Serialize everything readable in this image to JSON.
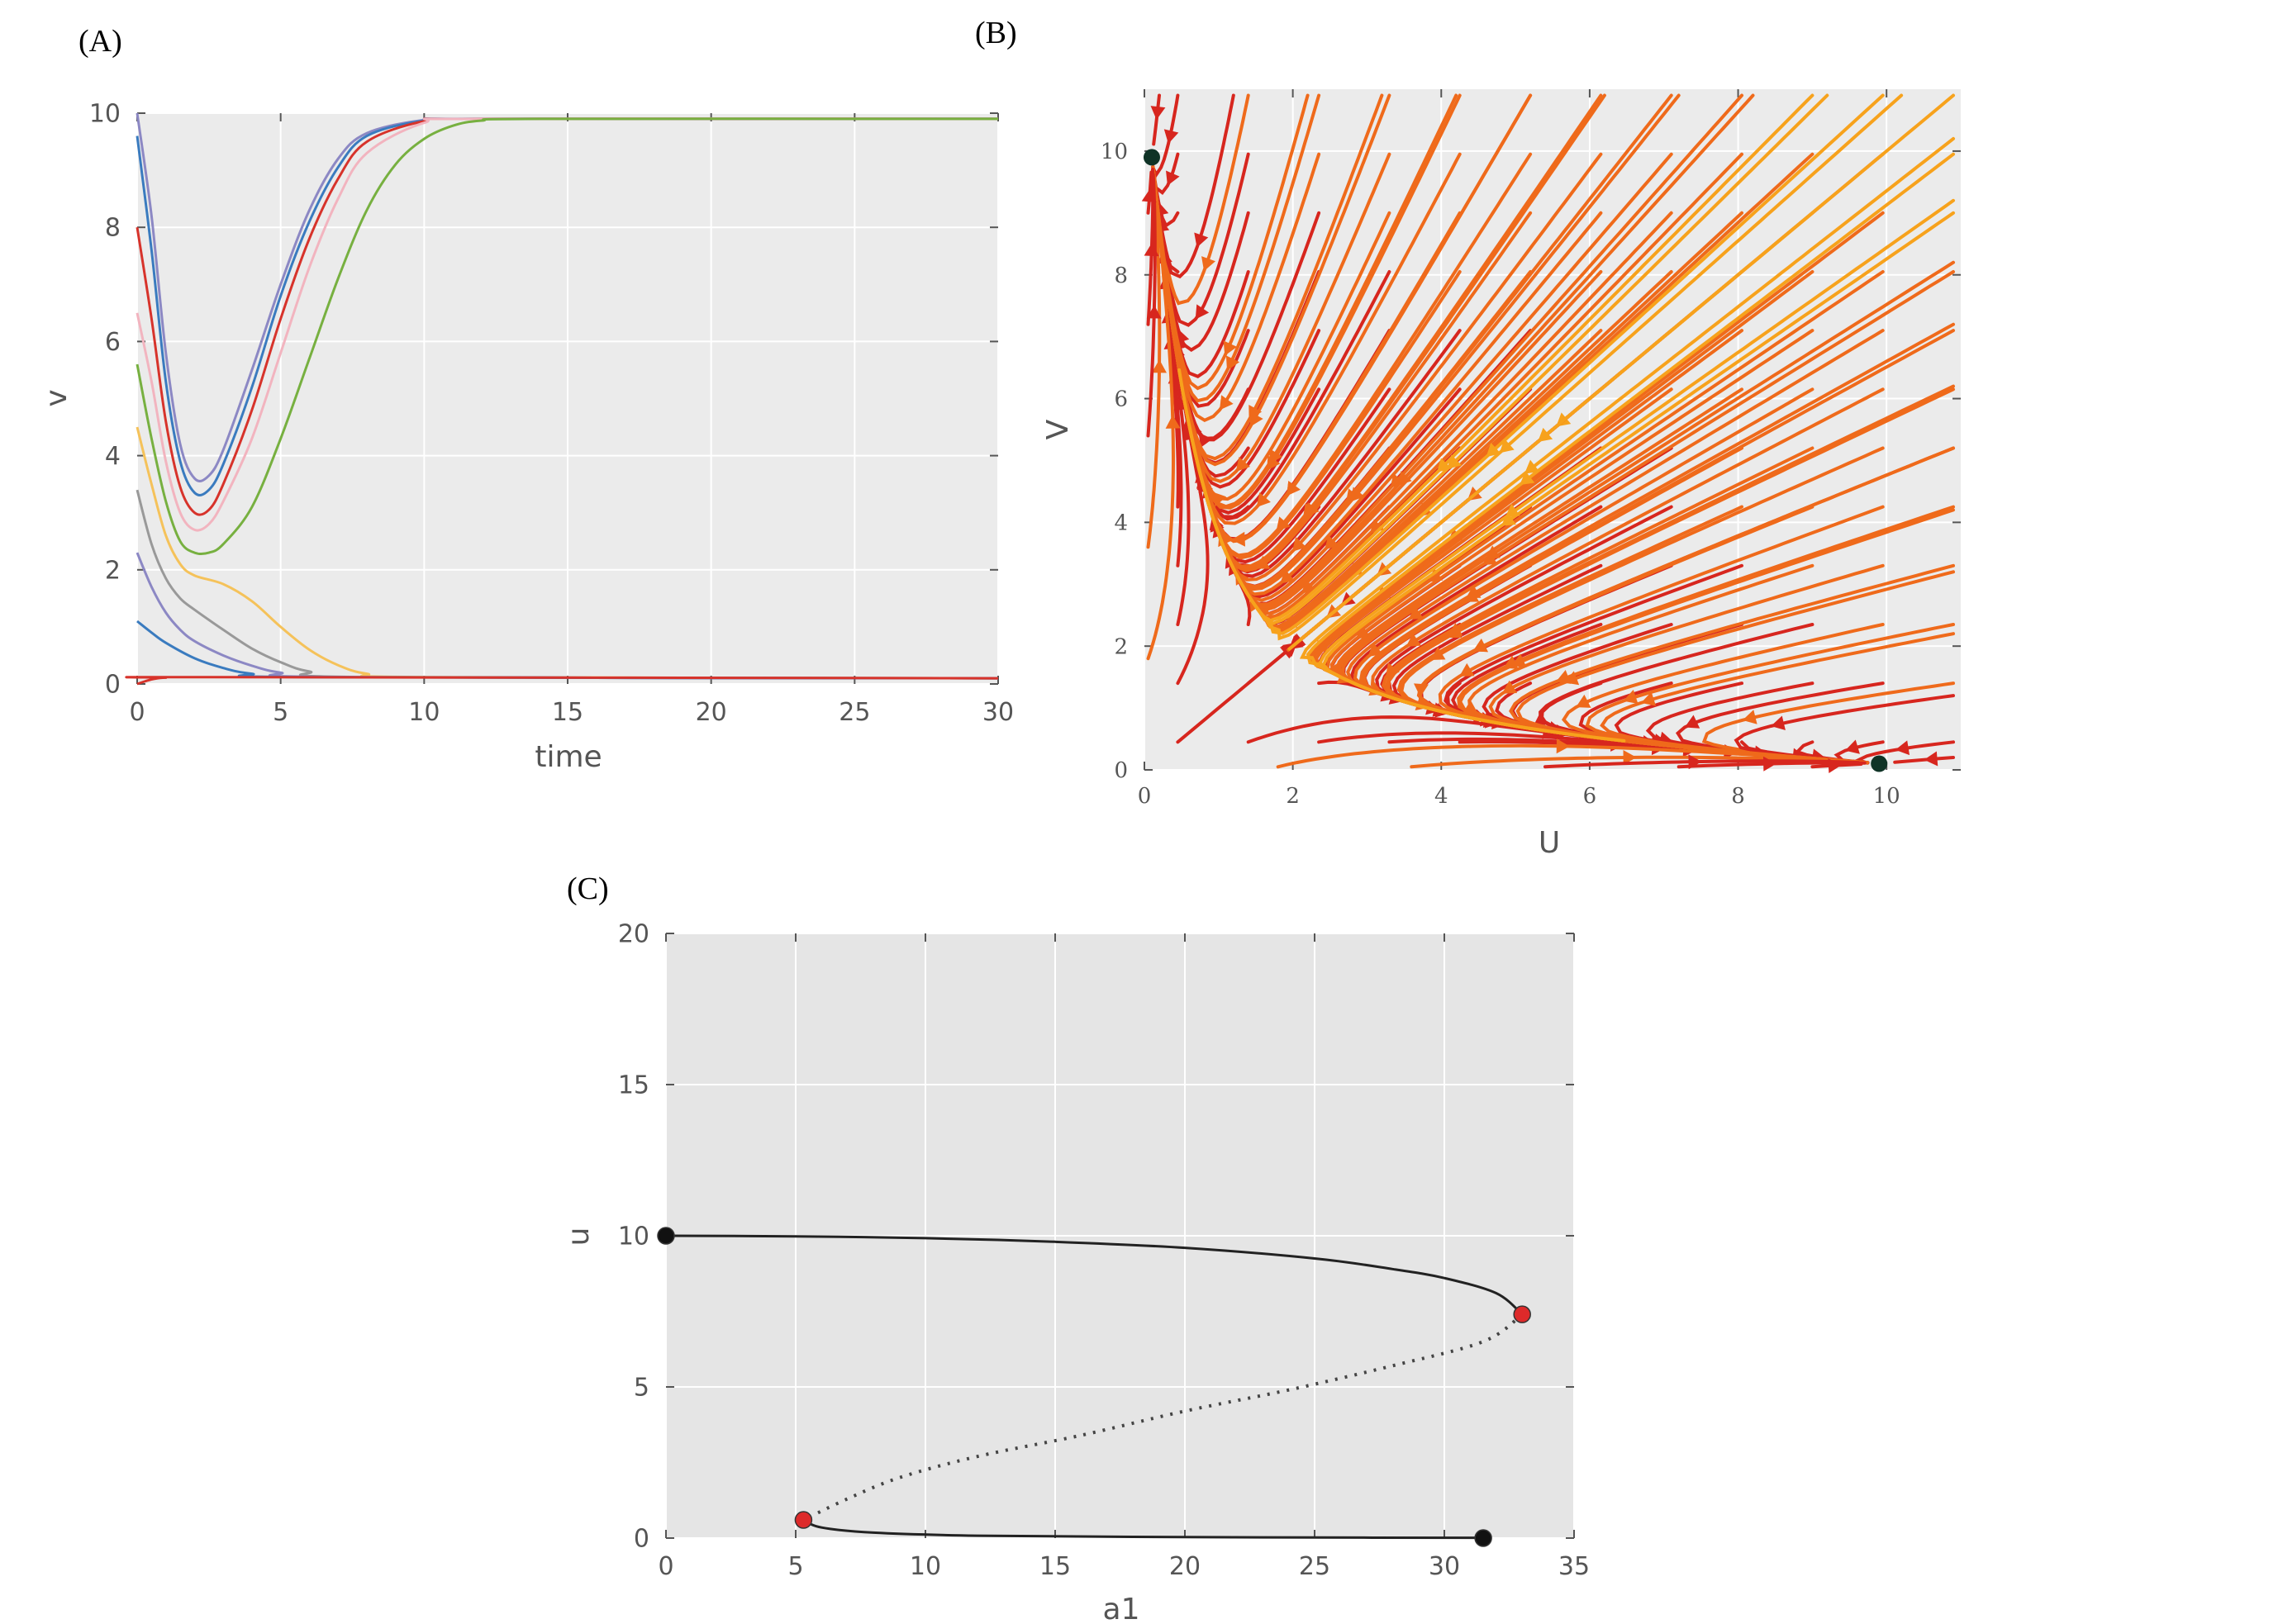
{
  "chart_data": [
    {
      "panel_label": "(A)",
      "type": "line",
      "title": "",
      "xlabel": "time",
      "ylabel": "v",
      "xlim": [
        0,
        30
      ],
      "ylim": [
        0,
        10
      ],
      "xticks": [
        0,
        5,
        10,
        15,
        20,
        25,
        30
      ],
      "yticks": [
        0,
        2,
        4,
        6,
        8,
        10
      ],
      "grid": true,
      "legend": "none",
      "series": [
        {
          "color": "#8c88c4",
          "values": [
            [
              0,
              10.0
            ],
            [
              0.5,
              8.2
            ],
            [
              1,
              5.8
            ],
            [
              1.5,
              4.2
            ],
            [
              2,
              3.6
            ],
            [
              2.5,
              3.65
            ],
            [
              3,
              4.1
            ],
            [
              4,
              5.5
            ],
            [
              5,
              7.0
            ],
            [
              6,
              8.3
            ],
            [
              7,
              9.2
            ],
            [
              8,
              9.65
            ],
            [
              10,
              9.88
            ],
            [
              12,
              9.9
            ],
            [
              30,
              9.9
            ]
          ]
        },
        {
          "color": "#3a7bbf",
          "values": [
            [
              0,
              9.6
            ],
            [
              0.5,
              7.6
            ],
            [
              1,
              5.3
            ],
            [
              1.5,
              3.9
            ],
            [
              2,
              3.35
            ],
            [
              2.5,
              3.4
            ],
            [
              3,
              3.85
            ],
            [
              4,
              5.2
            ],
            [
              5,
              6.8
            ],
            [
              6,
              8.1
            ],
            [
              7,
              9.05
            ],
            [
              8,
              9.6
            ],
            [
              10,
              9.87
            ],
            [
              12,
              9.9
            ],
            [
              30,
              9.9
            ]
          ]
        },
        {
          "color": "#d7332b",
          "values": [
            [
              0,
              8.0
            ],
            [
              0.5,
              6.4
            ],
            [
              1,
              4.6
            ],
            [
              1.5,
              3.45
            ],
            [
              2,
              3.0
            ],
            [
              2.5,
              3.05
            ],
            [
              3,
              3.5
            ],
            [
              4,
              4.8
            ],
            [
              5,
              6.4
            ],
            [
              6,
              7.8
            ],
            [
              7,
              8.85
            ],
            [
              8,
              9.5
            ],
            [
              10,
              9.86
            ],
            [
              12,
              9.9
            ],
            [
              30,
              9.9
            ]
          ]
        },
        {
          "color": "#f2b4bf",
          "values": [
            [
              0,
              6.5
            ],
            [
              0.5,
              5.3
            ],
            [
              1,
              3.9
            ],
            [
              1.5,
              3.0
            ],
            [
              2,
              2.7
            ],
            [
              2.5,
              2.8
            ],
            [
              3,
              3.2
            ],
            [
              4,
              4.3
            ],
            [
              5,
              5.8
            ],
            [
              6,
              7.3
            ],
            [
              7,
              8.5
            ],
            [
              8,
              9.3
            ],
            [
              10,
              9.83
            ],
            [
              12,
              9.9
            ],
            [
              30,
              9.9
            ]
          ]
        },
        {
          "color": "#77b040",
          "values": [
            [
              0,
              5.6
            ],
            [
              0.5,
              4.3
            ],
            [
              1,
              3.2
            ],
            [
              1.5,
              2.5
            ],
            [
              2,
              2.3
            ],
            [
              2.5,
              2.3
            ],
            [
              3,
              2.45
            ],
            [
              4,
              3.1
            ],
            [
              5,
              4.3
            ],
            [
              6,
              5.7
            ],
            [
              7,
              7.1
            ],
            [
              8,
              8.3
            ],
            [
              9,
              9.1
            ],
            [
              10,
              9.55
            ],
            [
              11,
              9.78
            ],
            [
              12,
              9.87
            ],
            [
              14,
              9.9
            ],
            [
              30,
              9.9
            ]
          ]
        },
        {
          "color": "#f5c25a",
          "values": [
            [
              0,
              4.5
            ],
            [
              0.5,
              3.5
            ],
            [
              1,
              2.6
            ],
            [
              1.5,
              2.1
            ],
            [
              2,
              1.9
            ],
            [
              3,
              1.75
            ],
            [
              4,
              1.45
            ],
            [
              5,
              1.0
            ],
            [
              6,
              0.6
            ],
            [
              7,
              0.33
            ],
            [
              8,
              0.18
            ],
            [
              10,
              0.12
            ],
            [
              30,
              0.1
            ]
          ]
        },
        {
          "color": "#999999",
          "values": [
            [
              0,
              3.4
            ],
            [
              0.5,
              2.45
            ],
            [
              1,
              1.85
            ],
            [
              1.5,
              1.5
            ],
            [
              2,
              1.3
            ],
            [
              3,
              0.95
            ],
            [
              4,
              0.62
            ],
            [
              5,
              0.38
            ],
            [
              6,
              0.22
            ],
            [
              8,
              0.12
            ],
            [
              30,
              0.1
            ]
          ]
        },
        {
          "color": "#8c88c4",
          "values": [
            [
              0,
              2.3
            ],
            [
              0.5,
              1.7
            ],
            [
              1,
              1.25
            ],
            [
              1.5,
              0.95
            ],
            [
              2,
              0.75
            ],
            [
              3,
              0.5
            ],
            [
              4,
              0.32
            ],
            [
              5,
              0.2
            ],
            [
              7,
              0.12
            ],
            [
              30,
              0.1
            ]
          ]
        },
        {
          "color": "#3a7bbf",
          "values": [
            [
              0,
              1.1
            ],
            [
              0.5,
              0.9
            ],
            [
              1,
              0.72
            ],
            [
              2,
              0.45
            ],
            [
              3,
              0.28
            ],
            [
              4,
              0.18
            ],
            [
              6,
              0.12
            ],
            [
              30,
              0.1
            ]
          ]
        },
        {
          "color": "#d7332b",
          "values": [
            [
              0,
              0.0
            ],
            [
              0.3,
              0.05
            ],
            [
              0.6,
              0.09
            ],
            [
              1,
              0.11
            ],
            [
              2,
              0.12
            ],
            [
              30,
              0.1
            ]
          ]
        }
      ]
    },
    {
      "panel_label": "(B)",
      "type": "streamplot",
      "title": "",
      "xlabel": "U",
      "ylabel": "V",
      "xlim": [
        0,
        11
      ],
      "ylim": [
        0,
        11
      ],
      "xticks": [
        0,
        2,
        4,
        6,
        8,
        10
      ],
      "yticks": [
        0,
        2,
        4,
        6,
        8,
        10
      ],
      "grid": true,
      "legend": "none",
      "equilibria": [
        [
          0.1,
          9.9
        ],
        [
          9.9,
          0.1
        ]
      ],
      "color_scale": [
        "#d7261e",
        "#ef6a1b",
        "#f7a21c",
        "#f9e028"
      ]
    },
    {
      "panel_label": "(C)",
      "type": "line",
      "title": "",
      "xlabel": "a1",
      "ylabel": "u",
      "xlim": [
        0,
        35
      ],
      "ylim": [
        0,
        20
      ],
      "xticks": [
        0,
        5,
        10,
        15,
        20,
        25,
        30,
        35
      ],
      "yticks": [
        0,
        5,
        10,
        15,
        20
      ],
      "grid": true,
      "legend": "none",
      "series": [
        {
          "style": "solid",
          "color": "#222222",
          "values": [
            [
              0,
              10.0
            ],
            [
              5,
              9.98
            ],
            [
              10,
              9.92
            ],
            [
              15,
              9.8
            ],
            [
              20,
              9.6
            ],
            [
              25,
              9.25
            ],
            [
              28,
              8.9
            ],
            [
              30,
              8.6
            ],
            [
              32,
              8.1
            ],
            [
              33,
              7.4
            ]
          ]
        },
        {
          "style": "dotted",
          "color": "#444444",
          "values": [
            [
              33,
              7.4
            ],
            [
              31.5,
              6.5
            ],
            [
              28,
              5.7
            ],
            [
              24,
              4.9
            ],
            [
              20,
              4.2
            ],
            [
              16,
              3.4
            ],
            [
              12,
              2.7
            ],
            [
              9,
              2.0
            ],
            [
              7,
              1.3
            ],
            [
              5.3,
              0.6
            ]
          ]
        },
        {
          "style": "solid",
          "color": "#222222",
          "values": [
            [
              5.3,
              0.6
            ],
            [
              6,
              0.35
            ],
            [
              8,
              0.18
            ],
            [
              12,
              0.08
            ],
            [
              18,
              0.04
            ],
            [
              25,
              0.02
            ],
            [
              31.5,
              0.01
            ]
          ]
        }
      ],
      "points": [
        {
          "x": 0,
          "y": 10.0,
          "color": "#111111"
        },
        {
          "x": 33,
          "y": 7.4,
          "color": "#dd2a2a"
        },
        {
          "x": 5.3,
          "y": 0.6,
          "color": "#dd2a2a"
        },
        {
          "x": 31.5,
          "y": 0.0,
          "color": "#111111"
        }
      ]
    }
  ]
}
